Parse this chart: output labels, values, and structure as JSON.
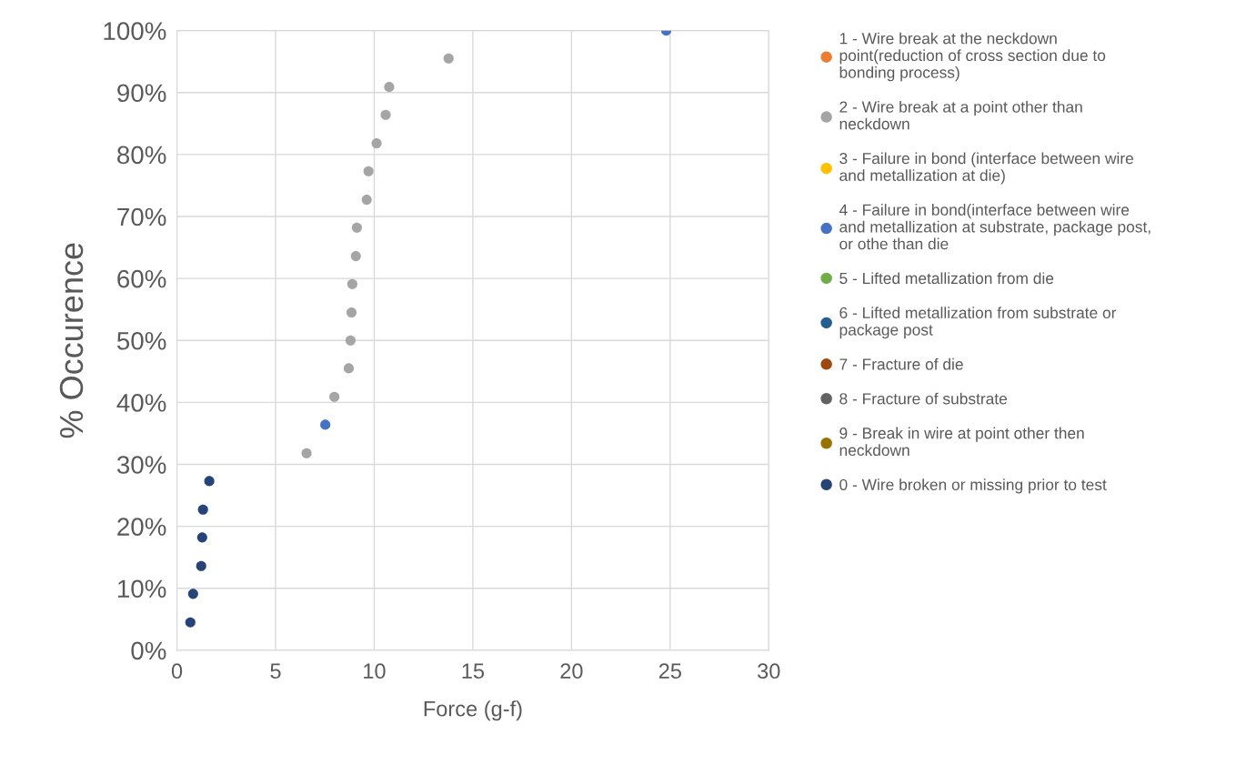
{
  "chart_data": {
    "type": "scatter",
    "xlabel": "Force (g-f)",
    "ylabel": "% Occurence",
    "xlim": [
      0,
      30
    ],
    "xticks": [
      0,
      5,
      10,
      15,
      20,
      25,
      30
    ],
    "ylim": [
      0,
      100
    ],
    "yticks": [
      {
        "value": 0,
        "label": "0%"
      },
      {
        "value": 10,
        "label": "10%"
      },
      {
        "value": 20,
        "label": "20%"
      },
      {
        "value": 30,
        "label": "30%"
      },
      {
        "value": 40,
        "label": "40%"
      },
      {
        "value": 50,
        "label": "50%"
      },
      {
        "value": 60,
        "label": "60%"
      },
      {
        "value": 70,
        "label": "70%"
      },
      {
        "value": 80,
        "label": "80%"
      },
      {
        "value": 90,
        "label": "90%"
      },
      {
        "value": 100,
        "label": "100%"
      }
    ],
    "grid": true,
    "legend": "right",
    "marker": "circle",
    "series": [
      {
        "name": "1 - Wire break at the neckdown\npoint(reduction of cross section due to\nbonding process)",
        "color": "#ed7d31"
      },
      {
        "name": "2 - Wire break at a point other than\nneckdown",
        "color": "#a5a5a5",
        "x": [
          6.57,
          7.98,
          8.71,
          8.8,
          8.85,
          8.89,
          9.07,
          9.12,
          9.62,
          9.71,
          10.12,
          10.58,
          10.76,
          13.77
        ],
        "values": [
          31.8,
          40.9,
          45.5,
          50,
          54.5,
          59.1,
          63.6,
          68.2,
          72.7,
          77.3,
          81.8,
          86.4,
          90.9,
          95.5
        ]
      },
      {
        "name": "3 - Failure in bond (interface between wire\nand metallization at die)",
        "color": "#ffc000"
      },
      {
        "name": "4 - Failure in bond(interface between wire\nand metallization at substrate, package post,\nor othe than die",
        "color": "#4472c4",
        "x": [
          7.52,
          24.8
        ],
        "values": [
          36.4,
          100
        ]
      },
      {
        "name": "5 - Lifted metallization from die",
        "color": "#70ad47"
      },
      {
        "name": "6 - Lifted metallization from substrate or\npackage post",
        "color": "#255e91"
      },
      {
        "name": "7 - Fracture of die",
        "color": "#9e480e"
      },
      {
        "name": "8 - Fracture of substrate",
        "color": "#636363"
      },
      {
        "name": "9 - Break in wire at point other then\nneckdown",
        "color": "#997300"
      },
      {
        "name": "0 - Wire broken or missing prior to test",
        "color": "#264478",
        "x": [
          0.68,
          0.82,
          1.23,
          1.28,
          1.32,
          1.64
        ],
        "values": [
          4.5,
          9.1,
          13.6,
          18.2,
          22.7,
          27.3
        ]
      }
    ]
  }
}
